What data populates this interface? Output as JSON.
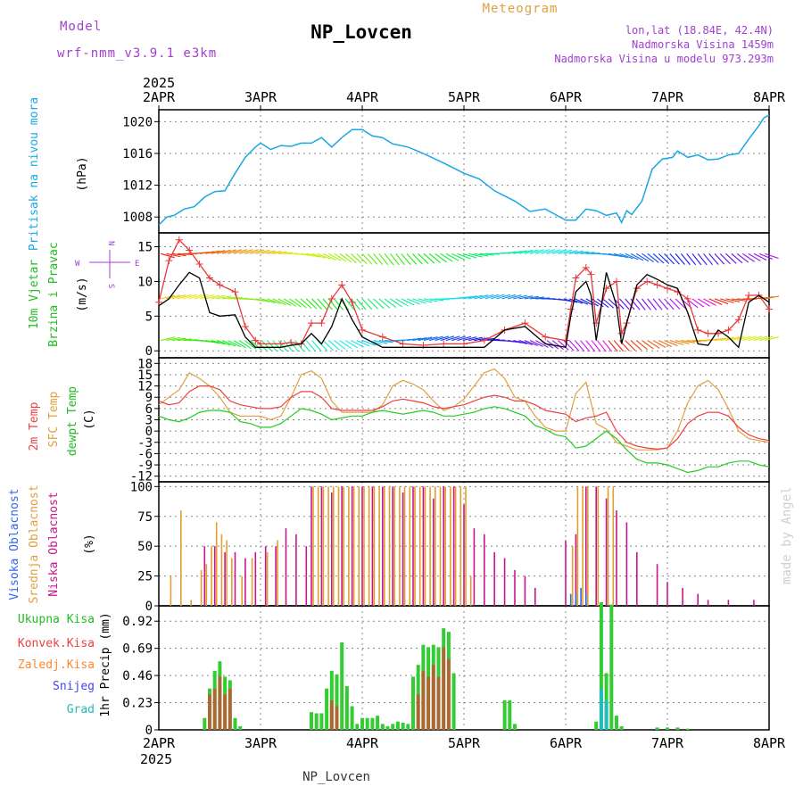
{
  "header": {
    "model_label": "Model",
    "model_name": "wrf-nmm_v3.9.1 e3km",
    "station_title": "NP_Lovcen",
    "product": "Meteogram",
    "lonlat": "lon,lat (18.84E, 42.4N)",
    "elevation": "Nadmorska Visina 1459m",
    "model_elevation": "Nadmorska Visina u modelu 973.293m",
    "year_top": "2025",
    "year_bottom": "2025",
    "footer_station": "NP_Lovcen",
    "credit": "made by Angel"
  },
  "colors": {
    "pressure": "#1aa7e6",
    "wind_speed": "#000000",
    "wind_gust": "#e8393a",
    "t2m": "#ee4040",
    "tsfc": "#e0a040",
    "dewpt": "#22cc22",
    "cloud_high": "#3366ee",
    "cloud_mid": "#e0a030",
    "cloud_low": "#c8158a",
    "rain_total": "#33cc33",
    "rain_conv": "#ee3333",
    "rain_freeze": "#ff8833",
    "snow": "#4444ee",
    "hail": "#22bbbb",
    "grid": "#888888",
    "label_purple": "#a040d0",
    "label_cyan": "#1aa7e6",
    "label_green": "#22bb22",
    "label_orange": "#e0a040",
    "label_red": "#ee4040"
  },
  "chart_data": [
    {
      "type": "line",
      "id": "pressure",
      "ylabel": "Pritisak na nivou mora",
      "units": "(hPa)",
      "xlabels": [
        "2APR",
        "3APR",
        "4APR",
        "5APR",
        "6APR",
        "7APR",
        "8APR"
      ],
      "ylim": [
        1006,
        1021.5
      ],
      "yticks": [
        1008,
        1012,
        1016,
        1020
      ],
      "x": [
        0,
        0.08,
        0.15,
        0.25,
        0.35,
        0.45,
        0.55,
        0.65,
        0.75,
        0.85,
        0.95,
        1.0,
        1.1,
        1.2,
        1.3,
        1.4,
        1.5,
        1.6,
        1.7,
        1.8,
        1.9,
        2.0,
        2.1,
        2.2,
        2.3,
        2.45,
        2.6,
        2.8,
        3.0,
        3.15,
        3.3,
        3.5,
        3.65,
        3.8,
        3.9,
        4.0,
        4.1,
        4.2,
        4.3,
        4.4,
        4.5,
        4.55,
        4.6,
        4.65,
        4.75,
        4.85,
        4.95,
        5.05,
        5.1,
        5.2,
        5.3,
        5.4,
        5.5,
        5.6,
        5.7,
        5.8,
        5.9,
        5.95,
        6.0
      ],
      "series": [
        {
          "name": "MSLP",
          "values": [
            1007.0,
            1008.0,
            1008.2,
            1009.0,
            1009.3,
            1010.5,
            1011.2,
            1011.3,
            1013.5,
            1015.5,
            1016.8,
            1017.3,
            1016.5,
            1017.0,
            1016.9,
            1017.3,
            1017.3,
            1018.0,
            1016.8,
            1018.0,
            1019.0,
            1019.0,
            1018.2,
            1018.0,
            1017.2,
            1016.8,
            1016.0,
            1014.8,
            1013.5,
            1012.8,
            1011.3,
            1010.0,
            1008.7,
            1009.0,
            1008.3,
            1007.6,
            1007.6,
            1009.0,
            1008.8,
            1008.2,
            1008.5,
            1007.3,
            1008.8,
            1008.3,
            1010.0,
            1014.0,
            1015.3,
            1015.5,
            1016.3,
            1015.5,
            1015.8,
            1015.2,
            1015.3,
            1015.8,
            1016.0,
            1017.8,
            1019.5,
            1020.5,
            1020.8
          ]
        }
      ]
    },
    {
      "type": "line",
      "id": "wind",
      "ylabel": "10m Vjetar Brzina i Pravac",
      "units": "(m/s)",
      "compass": {
        "n": "N",
        "s": "S",
        "e": "E",
        "w": "W"
      },
      "ylim": [
        -1,
        17
      ],
      "yticks": [
        0,
        5,
        10,
        15
      ],
      "x": [
        0,
        0.1,
        0.2,
        0.3,
        0.4,
        0.5,
        0.6,
        0.75,
        0.85,
        0.95,
        1.0,
        1.2,
        1.3,
        1.4,
        1.5,
        1.6,
        1.7,
        1.8,
        1.9,
        2.0,
        2.2,
        2.4,
        2.6,
        2.8,
        3.0,
        3.2,
        3.4,
        3.6,
        3.8,
        4.0,
        4.05,
        4.1,
        4.2,
        4.25,
        4.3,
        4.4,
        4.5,
        4.55,
        4.6,
        4.7,
        4.8,
        4.9,
        5.0,
        5.1,
        5.2,
        5.3,
        5.4,
        5.5,
        5.6,
        5.7,
        5.8,
        5.9,
        6.0
      ],
      "series": [
        {
          "name": "Wind speed",
          "values": [
            6.5,
            7.5,
            9.5,
            11.3,
            10.5,
            5.5,
            5.0,
            5.2,
            2.0,
            0.5,
            0.5,
            0.5,
            0.8,
            1.0,
            2.5,
            1.0,
            3.5,
            7.5,
            4.5,
            2.0,
            0.5,
            0.5,
            0.5,
            0.5,
            0.5,
            0.5,
            3.0,
            3.5,
            1.0,
            0.5,
            5.0,
            8.5,
            10.0,
            8.0,
            1.5,
            11.3,
            6.5,
            1.0,
            4.0,
            9.5,
            11.0,
            10.3,
            9.5,
            9.0,
            5.5,
            1.0,
            0.8,
            3.0,
            2.0,
            0.5,
            7.0,
            8.0,
            7.0
          ]
        },
        {
          "name": "Wind gust",
          "values": [
            7.0,
            13.0,
            16.0,
            14.5,
            12.5,
            10.5,
            9.5,
            8.5,
            3.5,
            1.5,
            1.0,
            1.0,
            1.2,
            1.0,
            4.0,
            4.0,
            7.5,
            9.5,
            7.0,
            3.0,
            2.0,
            1.0,
            0.8,
            1.0,
            1.0,
            1.5,
            3.0,
            4.0,
            2.0,
            1.5,
            6.0,
            10.5,
            12.0,
            11.0,
            4.0,
            9.0,
            10.0,
            2.5,
            4.0,
            9.0,
            10.0,
            9.5,
            9.0,
            8.5,
            7.5,
            3.0,
            2.5,
            2.5,
            3.0,
            4.5,
            8.0,
            8.0,
            6.0
          ]
        }
      ]
    },
    {
      "type": "line",
      "id": "temperature",
      "labels": [
        "2m Temp",
        "SFC Temp",
        "dewpt Temp"
      ],
      "units": "(C)",
      "ylim": [
        -13.5,
        19.5
      ],
      "yticks": [
        18,
        15,
        12,
        9,
        6,
        3,
        0,
        -3,
        -6,
        -9,
        -12
      ],
      "x": [
        0,
        0.1,
        0.2,
        0.3,
        0.4,
        0.5,
        0.6,
        0.7,
        0.8,
        0.9,
        1.0,
        1.1,
        1.2,
        1.3,
        1.4,
        1.5,
        1.6,
        1.7,
        1.8,
        1.9,
        2.0,
        2.1,
        2.2,
        2.3,
        2.4,
        2.5,
        2.6,
        2.7,
        2.8,
        2.9,
        3.0,
        3.1,
        3.2,
        3.3,
        3.4,
        3.5,
        3.6,
        3.7,
        3.8,
        3.9,
        4.0,
        4.1,
        4.2,
        4.3,
        4.4,
        4.5,
        4.6,
        4.7,
        4.8,
        4.9,
        5.0,
        5.1,
        5.2,
        5.3,
        5.4,
        5.5,
        5.6,
        5.7,
        5.8,
        5.9,
        6.0
      ],
      "series": [
        {
          "name": "2m Temp",
          "values": [
            8,
            7,
            7.5,
            10.5,
            12,
            12,
            11,
            8,
            7,
            6.5,
            6,
            6,
            6.5,
            9,
            10.5,
            10.5,
            9,
            6,
            5.5,
            5.5,
            5.5,
            5.5,
            6.5,
            8,
            8.5,
            8,
            7.5,
            6.5,
            6,
            6.5,
            7,
            8,
            9,
            9.5,
            9,
            8,
            8,
            7,
            5.5,
            5,
            4.5,
            2.5,
            3.5,
            4,
            5,
            0,
            -3,
            -4,
            -4.5,
            -4.8,
            -4.5,
            -2,
            2,
            4,
            5,
            5,
            4,
            1,
            -1,
            -2,
            -2.5
          ]
        },
        {
          "name": "SFC Temp",
          "values": [
            7,
            9,
            11,
            15.5,
            14,
            12,
            9,
            5,
            4,
            4,
            4,
            3,
            4,
            9,
            15,
            16,
            14,
            8,
            5,
            5,
            5,
            5,
            7,
            12,
            13.5,
            12.5,
            11,
            8,
            5.5,
            6.5,
            8.5,
            12,
            15.5,
            16.5,
            14,
            9,
            8,
            4,
            1,
            0,
            0,
            10,
            13,
            2,
            0.5,
            -3,
            -4,
            -5,
            -5,
            -5,
            -4.5,
            0,
            7.5,
            12,
            13.5,
            11,
            6,
            0,
            -2,
            -2.5,
            -3
          ]
        },
        {
          "name": "dewpt Temp",
          "values": [
            4,
            3,
            2.5,
            3.5,
            5,
            5.5,
            5.5,
            5,
            2.5,
            2,
            1,
            1,
            2,
            4,
            6,
            5.5,
            4.5,
            3,
            3.5,
            4,
            4,
            5,
            5.5,
            5,
            4.5,
            5,
            5.5,
            5,
            4,
            4,
            4.5,
            5,
            6,
            6.5,
            6,
            5,
            4,
            1.5,
            0.5,
            -1,
            -1.5,
            -4.5,
            -4,
            -2,
            0,
            -2,
            -5,
            -7.5,
            -8.5,
            -8.5,
            -9,
            -10,
            -11,
            -10.5,
            -9.5,
            -9.5,
            -8.5,
            -8,
            -8,
            -9,
            -9.5
          ]
        }
      ]
    },
    {
      "type": "bar",
      "id": "clouds",
      "labels": [
        "Visoka Oblacnost",
        "Srednja Oblacnost",
        "Niska Oblacnost"
      ],
      "units": "(%)",
      "ylim": [
        0,
        104
      ],
      "yticks": [
        0,
        25,
        50,
        75,
        100
      ],
      "series": [
        {
          "name": "Niska Oblacnost",
          "x": [
            0.45,
            0.55,
            0.65,
            0.75,
            0.85,
            0.95,
            1.05,
            1.15,
            1.25,
            1.35,
            1.45,
            1.5,
            1.6,
            1.7,
            1.8,
            1.9,
            2.0,
            2.1,
            2.2,
            2.3,
            2.4,
            2.5,
            2.6,
            2.7,
            2.8,
            2.9,
            3.0,
            3.1,
            3.2,
            3.3,
            3.4,
            3.5,
            3.6,
            3.7,
            4.0,
            4.1,
            4.2,
            4.3,
            4.4,
            4.5,
            4.6,
            4.7,
            4.9,
            5.0,
            5.15,
            5.3,
            5.4,
            5.6,
            5.85
          ],
          "values": [
            50,
            50,
            45,
            45,
            40,
            45,
            50,
            50,
            65,
            60,
            50,
            100,
            100,
            95,
            100,
            100,
            100,
            100,
            100,
            100,
            95,
            100,
            100,
            90,
            100,
            100,
            85,
            65,
            60,
            45,
            40,
            30,
            25,
            15,
            55,
            60,
            100,
            100,
            90,
            80,
            70,
            45,
            35,
            20,
            15,
            10,
            5,
            5,
            5
          ]
        },
        {
          "name": "Srednja Oblacnost",
          "x": [
            0.1,
            0.2,
            0.3,
            0.4,
            0.45,
            0.5,
            0.55,
            0.6,
            0.65,
            0.7,
            0.8,
            0.9,
            1.05,
            1.15,
            1.5,
            1.55,
            1.6,
            1.65,
            1.7,
            1.75,
            1.8,
            1.85,
            1.9,
            1.95,
            2.0,
            2.05,
            2.1,
            2.15,
            2.2,
            2.25,
            2.3,
            2.35,
            2.4,
            2.45,
            2.5,
            2.55,
            2.6,
            2.65,
            2.7,
            2.75,
            2.8,
            2.85,
            2.9,
            2.95,
            3.0,
            3.05,
            4.05,
            4.1,
            4.15,
            4.2,
            4.3,
            4.4,
            4.45
          ],
          "values": [
            25,
            80,
            5,
            30,
            35,
            50,
            70,
            60,
            55,
            40,
            25,
            40,
            45,
            55,
            100,
            100,
            100,
            100,
            100,
            100,
            100,
            100,
            100,
            100,
            100,
            100,
            100,
            100,
            100,
            100,
            100,
            100,
            100,
            100,
            100,
            100,
            100,
            100,
            100,
            100,
            100,
            100,
            100,
            100,
            100,
            25,
            50,
            100,
            100,
            100,
            100,
            100,
            100
          ]
        },
        {
          "name": "Visoka Oblacnost",
          "x": [
            4.05,
            4.1,
            4.15,
            4.2
          ],
          "values": [
            10,
            10,
            15,
            10
          ]
        }
      ]
    },
    {
      "type": "bar",
      "id": "precip",
      "ylabel": "1hr Precip (mm)",
      "legend": [
        "Ukupna Kisa",
        "Konvek.Kisa",
        "Zaledj.Kisa",
        "Snijeg",
        "Grad"
      ],
      "ylim": [
        0,
        1.05
      ],
      "yticks": [
        0,
        0.23,
        0.46,
        0.69,
        0.92
      ],
      "series": [
        {
          "name": "Ukupna Kisa",
          "x": [
            0.45,
            0.5,
            0.55,
            0.6,
            0.65,
            0.7,
            0.75,
            0.8,
            1.5,
            1.55,
            1.6,
            1.65,
            1.7,
            1.75,
            1.8,
            1.85,
            1.9,
            1.95,
            2.0,
            2.05,
            2.1,
            2.15,
            2.2,
            2.25,
            2.3,
            2.35,
            2.4,
            2.45,
            2.5,
            2.55,
            2.6,
            2.65,
            2.7,
            2.75,
            2.8,
            2.85,
            2.9,
            3.4,
            3.45,
            3.5,
            4.3,
            4.35,
            4.4,
            4.45,
            4.5,
            4.55,
            4.9,
            5.0,
            5.1,
            5.2
          ],
          "values": [
            0.1,
            0.35,
            0.5,
            0.58,
            0.45,
            0.42,
            0.1,
            0.03,
            0.15,
            0.14,
            0.14,
            0.35,
            0.5,
            0.47,
            0.74,
            0.37,
            0.2,
            0.05,
            0.1,
            0.1,
            0.1,
            0.12,
            0.05,
            0.03,
            0.05,
            0.07,
            0.06,
            0.05,
            0.45,
            0.55,
            0.72,
            0.7,
            0.72,
            0.7,
            0.86,
            0.83,
            0.48,
            0.25,
            0.25,
            0.05,
            0.07,
            1.08,
            0.48,
            1.06,
            0.12,
            0.03,
            0.02,
            0.02,
            0.02,
            0.01
          ]
        },
        {
          "name": "Konvek.Kisa",
          "x": [
            0.5,
            0.55,
            0.6,
            0.65,
            0.7,
            1.7,
            1.75,
            2.55,
            2.6,
            2.65,
            2.7,
            2.75,
            2.8,
            2.85
          ],
          "values": [
            0.3,
            0.35,
            0.45,
            0.3,
            0.35,
            0.25,
            0.2,
            0.3,
            0.5,
            0.45,
            0.55,
            0.45,
            0.7,
            0.6
          ]
        },
        {
          "name": "Grad",
          "x": [
            4.35,
            4.4
          ],
          "values": [
            0.35,
            0.25
          ]
        }
      ]
    }
  ],
  "wind_barb_rows": [
    {
      "label": "row-high",
      "level": 14
    },
    {
      "label": "row-mid",
      "level": 7.5
    },
    {
      "label": "row-low",
      "level": 1.5
    }
  ]
}
